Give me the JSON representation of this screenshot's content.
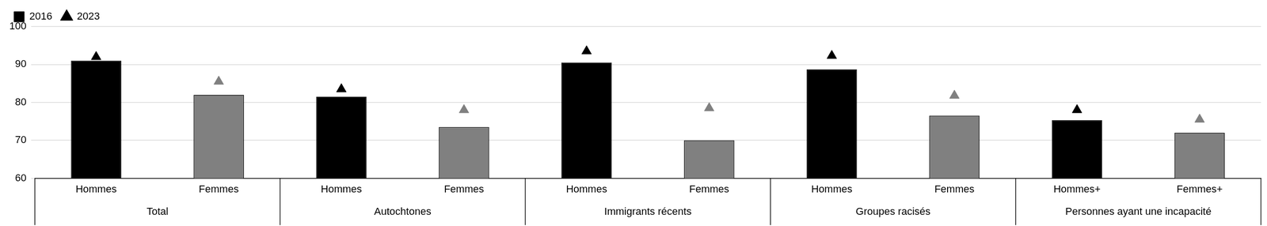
{
  "chart_data": {
    "type": "bar",
    "categories": [
      "Hommes",
      "Femmes",
      "Hommes",
      "Femmes",
      "Hommes",
      "Femmes",
      "Hommes",
      "Femmes",
      "Hommes+",
      "Femmes+"
    ],
    "groups": [
      "Total",
      "Autochtones",
      "Immigrants récents",
      "Groupes racisés",
      "Personnes ayant une incapacité"
    ],
    "series": [
      {
        "name": "2016",
        "type": "bar",
        "marker": "square",
        "colors": [
          "#000000",
          "#808080",
          "#000000",
          "#808080",
          "#000000",
          "#808080",
          "#000000",
          "#808080",
          "#000000",
          "#808080"
        ],
        "values": [
          91,
          82,
          81.5,
          73.5,
          90.5,
          70,
          88.7,
          76.5,
          75.3,
          72
        ]
      },
      {
        "name": "2023",
        "type": "scatter",
        "marker": "triangle",
        "colors": [
          "#000000",
          "#808080",
          "#000000",
          "#808080",
          "#000000",
          "#808080",
          "#000000",
          "#808080",
          "#000000",
          "#808080"
        ],
        "values": [
          92,
          85.5,
          83.5,
          78,
          93.5,
          78.5,
          92.3,
          81.8,
          78,
          75.5
        ]
      }
    ],
    "ylim": [
      60,
      100
    ],
    "yticks": [
      60,
      70,
      80,
      90,
      100
    ],
    "grid": true,
    "legend": "top"
  }
}
